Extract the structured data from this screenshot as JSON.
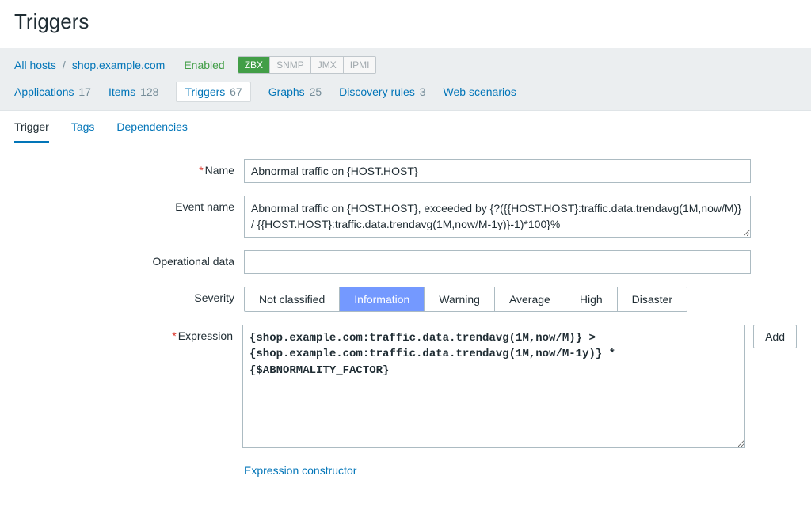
{
  "page": {
    "title": "Triggers"
  },
  "breadcrumb": {
    "all_hosts": "All hosts",
    "sep": "/",
    "host": "shop.example.com",
    "status": "Enabled",
    "protocols": [
      {
        "code": "ZBX",
        "active": true
      },
      {
        "code": "SNMP",
        "active": false
      },
      {
        "code": "JMX",
        "active": false
      },
      {
        "code": "IPMI",
        "active": false
      }
    ]
  },
  "nav": {
    "applications": {
      "label": "Applications",
      "count": "17"
    },
    "items": {
      "label": "Items",
      "count": "128"
    },
    "triggers": {
      "label": "Triggers",
      "count": "67"
    },
    "graphs": {
      "label": "Graphs",
      "count": "25"
    },
    "discovery": {
      "label": "Discovery rules",
      "count": "3"
    },
    "web": {
      "label": "Web scenarios"
    }
  },
  "tabs": {
    "trigger": "Trigger",
    "tags": "Tags",
    "dependencies": "Dependencies",
    "active": "trigger"
  },
  "form": {
    "labels": {
      "name": "Name",
      "event_name": "Event name",
      "operational_data": "Operational data",
      "severity": "Severity",
      "expression": "Expression"
    },
    "name_value": "Abnormal traffic on {HOST.HOST}",
    "event_name_value": "Abnormal traffic on {HOST.HOST}, exceeded by {?({{HOST.HOST}:traffic.data.trendavg(1M,now/M)} / {{HOST.HOST}:traffic.data.trendavg(1M,now/M-1y)}-1)*100}%",
    "operational_data_value": "",
    "severity_options": [
      "Not classified",
      "Information",
      "Warning",
      "Average",
      "High",
      "Disaster"
    ],
    "severity_selected": "Information",
    "expression_value": "{shop.example.com:traffic.data.trendavg(1M,now/M)} > {shop.example.com:traffic.data.trendavg(1M,now/M-1y)} * {$ABNORMALITY_FACTOR}",
    "add_button": "Add",
    "expression_constructor": "Expression constructor"
  },
  "colors": {
    "link": "#0275b8",
    "enabled": "#429e47",
    "severity_selected_bg": "#7499ff",
    "border": "#acbbc2",
    "header_bg": "#ebeef0"
  }
}
